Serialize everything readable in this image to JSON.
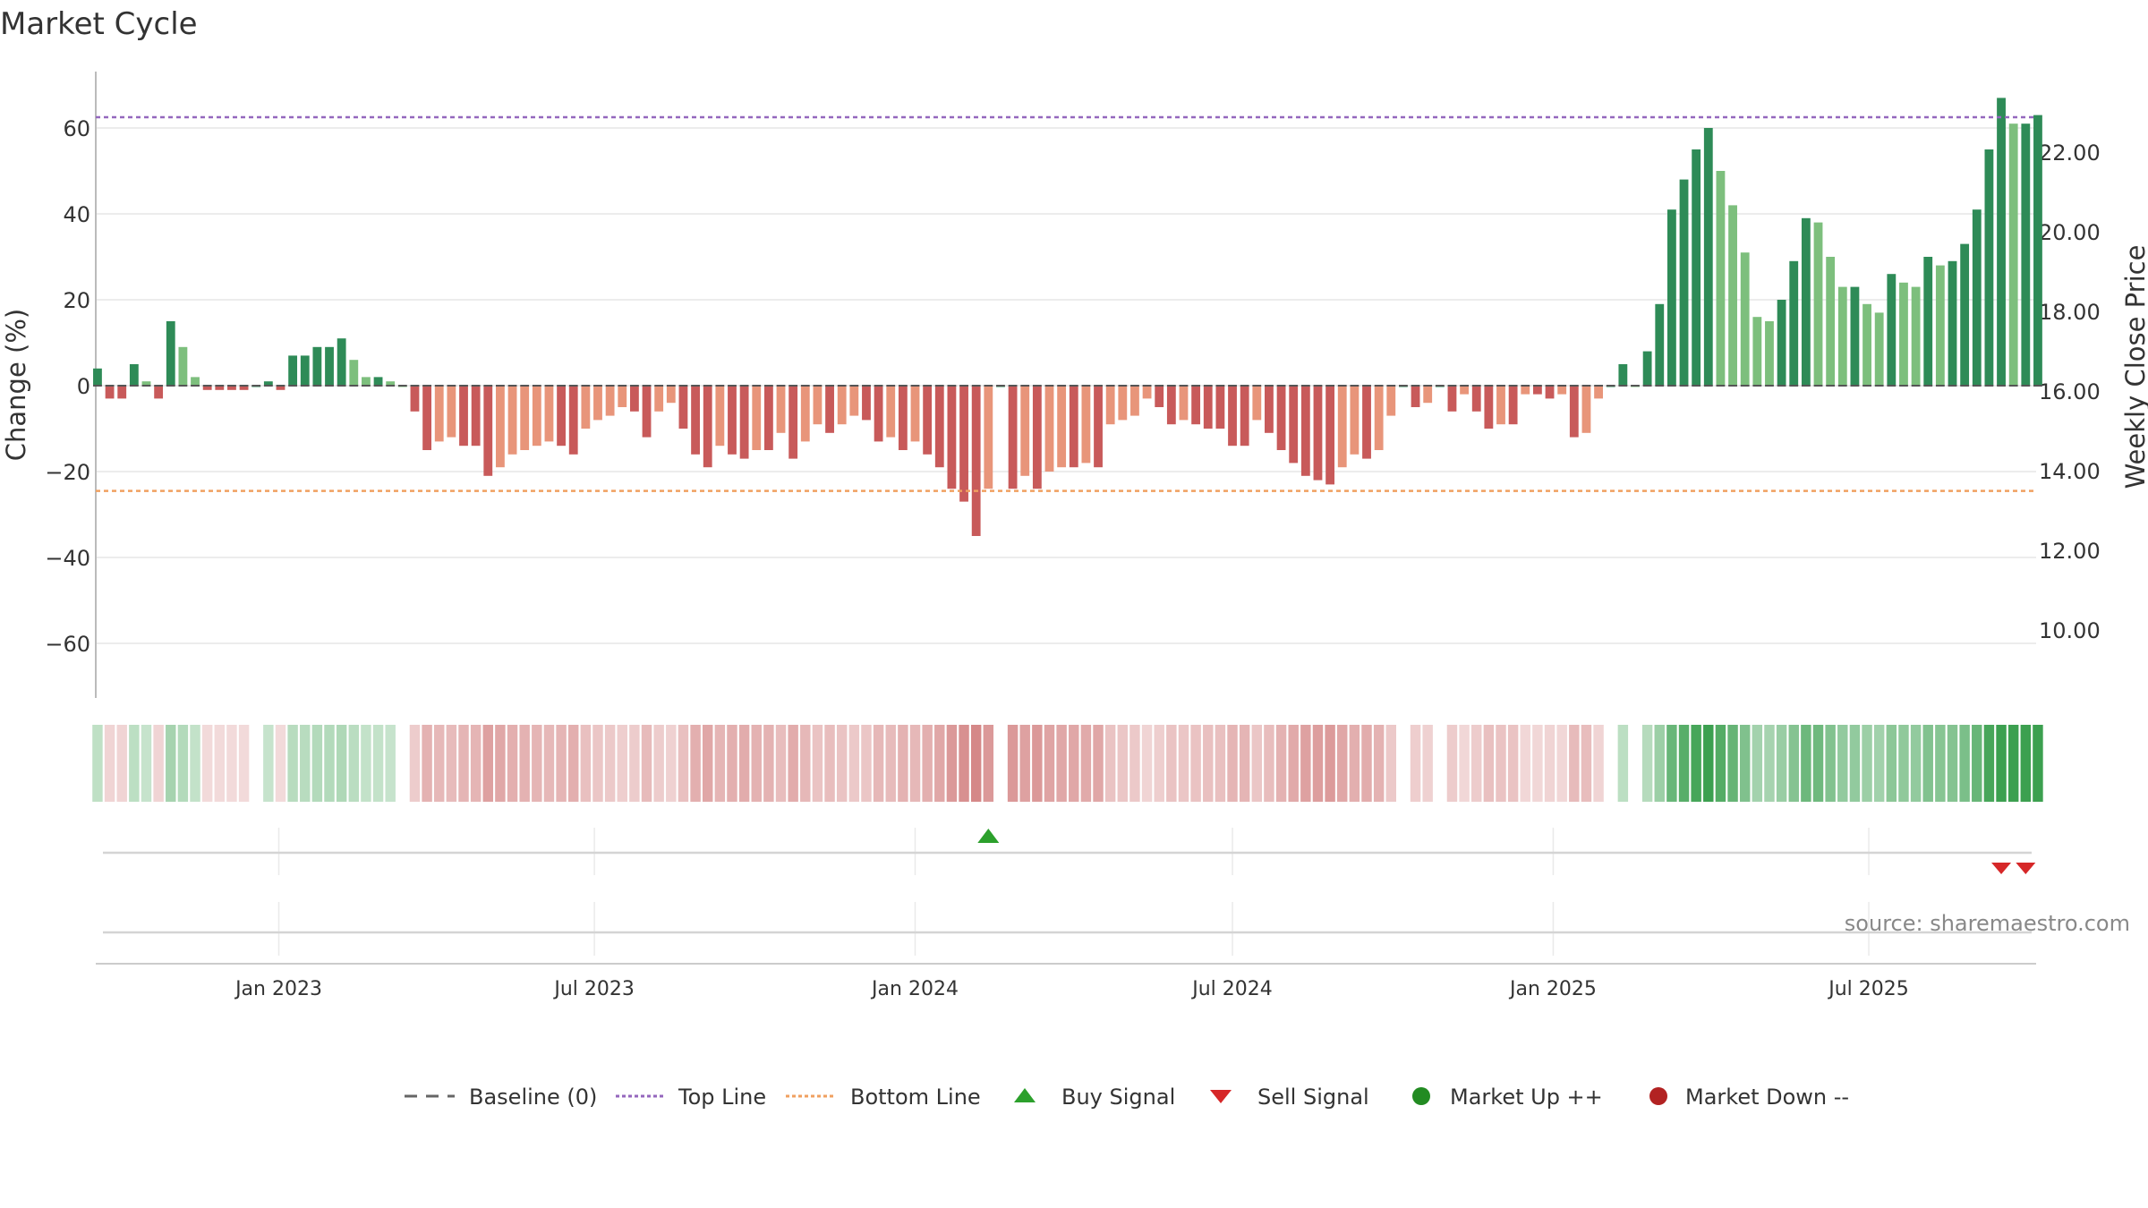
{
  "chart_data": {
    "type": "bar",
    "title": "Market Cycle",
    "ylabel_left": "Change (%)",
    "ylabel_right": "Weekly Close Price",
    "ylim_left": [
      -73,
      73
    ],
    "yticks_left": [
      60,
      40,
      20,
      0,
      -20,
      -40,
      -60
    ],
    "ytick_labels_left": [
      "60",
      "40",
      "20",
      "0",
      "−20",
      "−40",
      "−60"
    ],
    "ylim_right": [
      8.0,
      24.0
    ],
    "yticks_right_labels": [
      "22.00",
      "20.00",
      "18.00",
      "16.00",
      "14.00",
      "12.00",
      "10.00"
    ],
    "yticks_right_values": [
      22,
      20,
      18,
      16,
      14,
      12,
      10
    ],
    "top_line": 62.5,
    "bottom_line": -24.5,
    "x_start": "2022-09-18",
    "x_end": "2025-10-05",
    "x_tick_labels": [
      "Jan 2023",
      "Jul 2023",
      "Jan 2024",
      "Jul 2024",
      "Jan 2025",
      "Jul 2025"
    ],
    "x_tick_dates": [
      "2023-01-01",
      "2023-07-01",
      "2024-01-01",
      "2024-07-01",
      "2025-01-01",
      "2025-07-01"
    ],
    "first_week": "2022-09-19",
    "values": [
      4,
      -3,
      -3,
      5,
      1,
      -3,
      15,
      9,
      2,
      -1,
      -1,
      -1,
      -1,
      0,
      1,
      -1,
      7,
      7,
      9,
      9,
      11,
      6,
      2,
      2,
      1,
      0,
      -6,
      -15,
      -13,
      -12,
      -14,
      -14,
      -21,
      -19,
      -16,
      -15,
      -14,
      -13,
      -14,
      -16,
      -10,
      -8,
      -7,
      -5,
      -6,
      -12,
      -6,
      -4,
      -10,
      -16,
      -19,
      -14,
      -16,
      -17,
      -15,
      -15,
      -11,
      -17,
      -13,
      -9,
      -11,
      -9,
      -7,
      -8,
      -13,
      -12,
      -15,
      -13,
      -16,
      -19,
      -24,
      -27,
      -35,
      -24,
      0,
      -24,
      -21,
      -24,
      -20,
      -19,
      -19,
      -18,
      -19,
      -9,
      -8,
      -7,
      -3,
      -5,
      -9,
      -8,
      -9,
      -10,
      -10,
      -14,
      -14,
      -8,
      -11,
      -15,
      -18,
      -21,
      -22,
      -23,
      -19,
      -16,
      -17,
      -15,
      -7,
      0,
      -5,
      -4,
      0,
      -6,
      -2,
      -6,
      -10,
      -9,
      -9,
      -2,
      -2,
      -3,
      -2,
      -12,
      -11,
      -3,
      0,
      5,
      0,
      8,
      19,
      41,
      48,
      55,
      60,
      50,
      42,
      31,
      16,
      15,
      20,
      29,
      39,
      38,
      30,
      23,
      23,
      19,
      17,
      26,
      24,
      23,
      30,
      28,
      29,
      33,
      41,
      55,
      67,
      61,
      61,
      63
    ],
    "buy_signals": [
      "2024-02-12"
    ],
    "sell_signals": [
      "2025-09-15",
      "2025-09-29"
    ],
    "legend": [
      "Baseline (0)",
      "Top Line",
      "Bottom Line",
      "Buy Signal",
      "Sell Signal",
      "Market Up ++",
      "Market Down --"
    ],
    "source": "source: sharemaestro.com",
    "colors": {
      "strong_up": "#2e8b57",
      "up": "#7dbf7d",
      "strong_down": "#c85a5a",
      "down": "#e8957a",
      "top_line": "#9467bd",
      "bottom_line": "#f0a060",
      "buy": "#2ca02c",
      "sell": "#d62728",
      "market_up": "#228b22",
      "market_down": "#b22222"
    }
  }
}
